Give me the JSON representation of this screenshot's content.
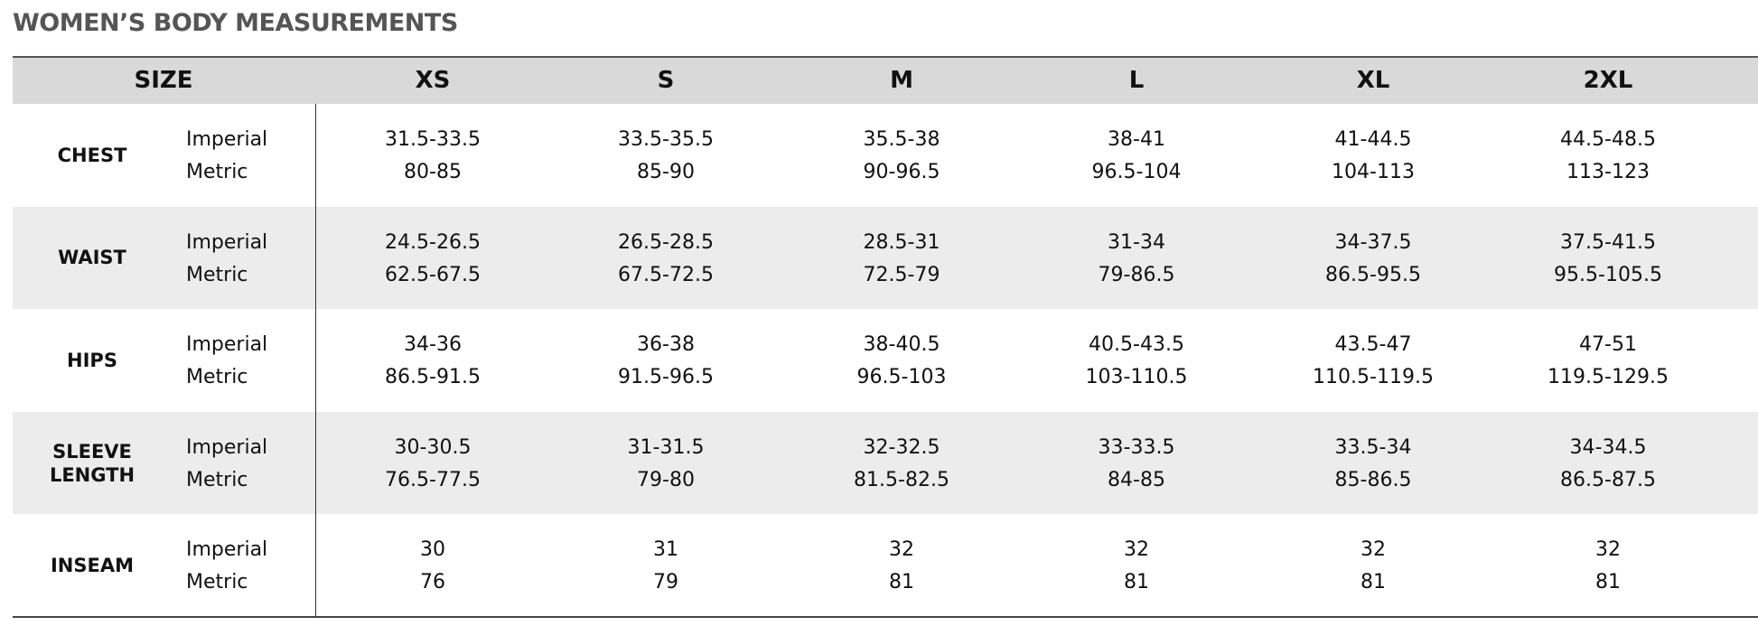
{
  "title": "WOMEN’S BODY MEASUREMENTS",
  "header": {
    "size": "SIZE",
    "sizes": [
      "XS",
      "S",
      "M",
      "L",
      "XL",
      "2XL"
    ]
  },
  "rows": [
    {
      "label": "CHEST",
      "imperial_label": "Imperial",
      "metric_label": "Metric",
      "imperial": [
        "31.5-33.5",
        "33.5-35.5",
        "35.5-38",
        "38-41",
        "41-44.5",
        "44.5-48.5"
      ],
      "metric": [
        "80-85",
        "85-90",
        "90-96.5",
        "96.5-104",
        "104-113",
        "113-123"
      ]
    },
    {
      "label": "WAIST",
      "imperial_label": "Imperial",
      "metric_label": "Metric",
      "imperial": [
        "24.5-26.5",
        "26.5-28.5",
        "28.5-31",
        "31-34",
        "34-37.5",
        "37.5-41.5"
      ],
      "metric": [
        "62.5-67.5",
        "67.5-72.5",
        "72.5-79",
        "79-86.5",
        "86.5-95.5",
        "95.5-105.5"
      ]
    },
    {
      "label": "HIPS",
      "imperial_label": "Imperial",
      "metric_label": "Metric",
      "imperial": [
        "34-36",
        "36-38",
        "38-40.5",
        "40.5-43.5",
        "43.5-47",
        "47-51"
      ],
      "metric": [
        "86.5-91.5",
        "91.5-96.5",
        "96.5-103",
        "103-110.5",
        "110.5-119.5",
        "119.5-129.5"
      ]
    },
    {
      "label": "SLEEVE LENGTH",
      "imperial_label": "Imperial",
      "metric_label": "Metric",
      "imperial": [
        "30-30.5",
        "31-31.5",
        "32-32.5",
        "33-33.5",
        "33.5-34",
        "34-34.5"
      ],
      "metric": [
        "76.5-77.5",
        "79-80",
        "81.5-82.5",
        "84-85",
        "85-86.5",
        "86.5-87.5"
      ]
    },
    {
      "label": "INSEAM",
      "imperial_label": "Imperial",
      "metric_label": "Metric",
      "imperial": [
        "30",
        "31",
        "32",
        "32",
        "32",
        "32"
      ],
      "metric": [
        "76",
        "79",
        "81",
        "81",
        "81",
        "81"
      ]
    }
  ]
}
